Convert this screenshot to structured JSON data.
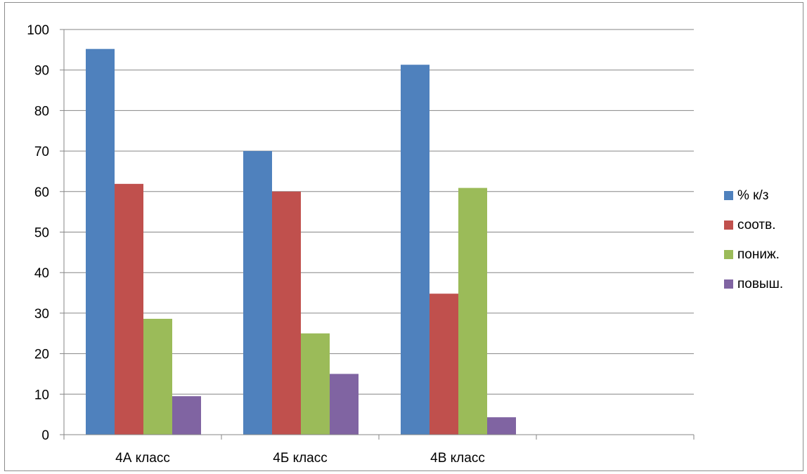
{
  "chart_data": {
    "type": "bar",
    "categories": [
      "4А класс",
      "4Б класс",
      "4В класс",
      ""
    ],
    "series": [
      {
        "name": "% к/з",
        "values": [
          95.2,
          70,
          91.3,
          null
        ],
        "color": "#4f81bd"
      },
      {
        "name": "соотв.",
        "values": [
          61.9,
          60,
          34.8,
          null
        ],
        "color": "#c0504d"
      },
      {
        "name": "пониж.",
        "values": [
          28.6,
          25,
          60.9,
          null
        ],
        "color": "#9bbb59"
      },
      {
        "name": "повыш.",
        "values": [
          9.5,
          15,
          4.3,
          null
        ],
        "color": "#8064a2"
      }
    ],
    "ylim": [
      0,
      100
    ],
    "yticks": [
      0,
      10,
      20,
      30,
      40,
      50,
      60,
      70,
      80,
      90,
      100
    ],
    "grid": true,
    "legend": "right"
  }
}
